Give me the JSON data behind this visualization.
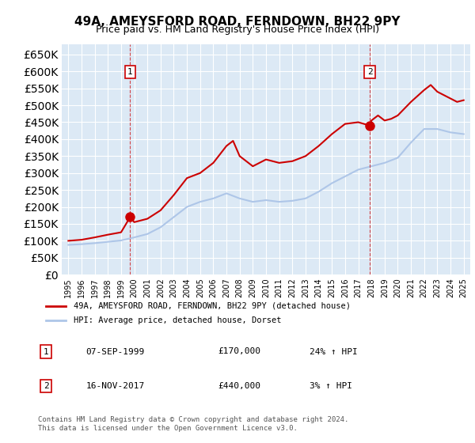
{
  "title": "49A, AMEYSFORD ROAD, FERNDOWN, BH22 9PY",
  "subtitle": "Price paid vs. HM Land Registry's House Price Index (HPI)",
  "ylabel_ticks": [
    0,
    50000,
    100000,
    150000,
    200000,
    250000,
    300000,
    350000,
    400000,
    450000,
    500000,
    550000,
    600000,
    650000
  ],
  "ylim": [
    0,
    680000
  ],
  "xlim_start": 1995.0,
  "xlim_end": 2025.5,
  "sale1_year": 1999.69,
  "sale1_price": 170000,
  "sale2_year": 2017.88,
  "sale2_price": 440000,
  "hpi_color": "#aec6e8",
  "price_color": "#cc0000",
  "marker_color": "#cc0000",
  "background_color": "#dce9f5",
  "legend_label_red": "49A, AMEYSFORD ROAD, FERNDOWN, BH22 9PY (detached house)",
  "legend_label_blue": "HPI: Average price, detached house, Dorset",
  "table_row1": [
    "1",
    "07-SEP-1999",
    "£170,000",
    "24% ↑ HPI"
  ],
  "table_row2": [
    "2",
    "16-NOV-2017",
    "£440,000",
    "3% ↑ HPI"
  ],
  "footnote": "Contains HM Land Registry data © Crown copyright and database right 2024.\nThis data is licensed under the Open Government Licence v3.0.",
  "hpi_years": [
    1995,
    1996,
    1997,
    1998,
    1999,
    2000,
    2001,
    2002,
    2003,
    2004,
    2005,
    2006,
    2007,
    2008,
    2009,
    2010,
    2011,
    2012,
    2013,
    2014,
    2015,
    2016,
    2017,
    2018,
    2019,
    2020,
    2021,
    2022,
    2023,
    2024,
    2025
  ],
  "hpi_values": [
    88000,
    90000,
    93000,
    97000,
    101000,
    110000,
    120000,
    140000,
    170000,
    200000,
    215000,
    225000,
    240000,
    225000,
    215000,
    220000,
    215000,
    218000,
    225000,
    245000,
    270000,
    290000,
    310000,
    320000,
    330000,
    345000,
    390000,
    430000,
    430000,
    420000,
    415000
  ],
  "price_years": [
    1995,
    1996,
    1997,
    1998,
    1999,
    1999.69,
    2000,
    2001,
    2002,
    2003,
    2004,
    2005,
    2006,
    2007,
    2007.5,
    2008,
    2009,
    2010,
    2011,
    2012,
    2013,
    2014,
    2015,
    2016,
    2017,
    2017.88,
    2018,
    2018.5,
    2019,
    2019.5,
    2020,
    2021,
    2022,
    2022.5,
    2023,
    2023.5,
    2024,
    2024.5,
    2025
  ],
  "price_values": [
    100000,
    103000,
    110000,
    118000,
    125000,
    170000,
    155000,
    165000,
    190000,
    235000,
    285000,
    300000,
    330000,
    380000,
    395000,
    350000,
    320000,
    340000,
    330000,
    335000,
    350000,
    380000,
    415000,
    445000,
    450000,
    440000,
    455000,
    470000,
    455000,
    460000,
    470000,
    510000,
    545000,
    560000,
    540000,
    530000,
    520000,
    510000,
    515000
  ]
}
